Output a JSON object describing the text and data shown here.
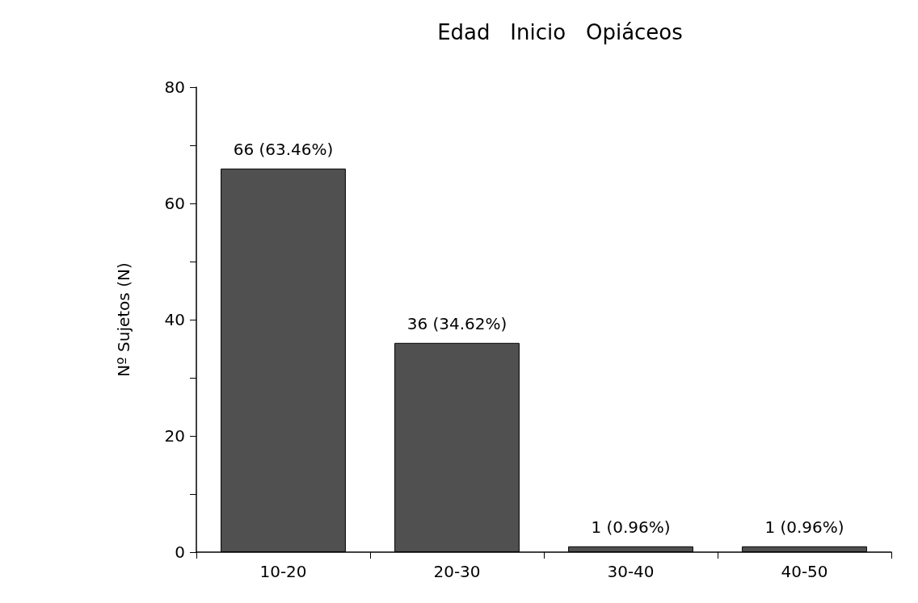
{
  "chart_data": {
    "type": "bar",
    "title": "Edad   Inicio   Opiáceos",
    "ylabel": "Nº Sujetos (N)",
    "categories": [
      "10-20",
      "20-30",
      "30-40",
      "40-50"
    ],
    "values": [
      66,
      36,
      1,
      1
    ],
    "color": "#505050",
    "value_labels": [
      "66 (63.46%)",
      "36 (34.62%)",
      "1 (0.96%)",
      "1 (0.96%)"
    ],
    "ylim": [
      0,
      80
    ],
    "yticks": [
      0,
      {
        "value": 10,
        "label": null
      },
      20,
      {
        "value": 30,
        "label": null
      },
      40,
      {
        "value": 50,
        "label": null
      },
      60,
      {
        "value": 70,
        "label": null
      },
      80
    ],
    "grid": false
  }
}
